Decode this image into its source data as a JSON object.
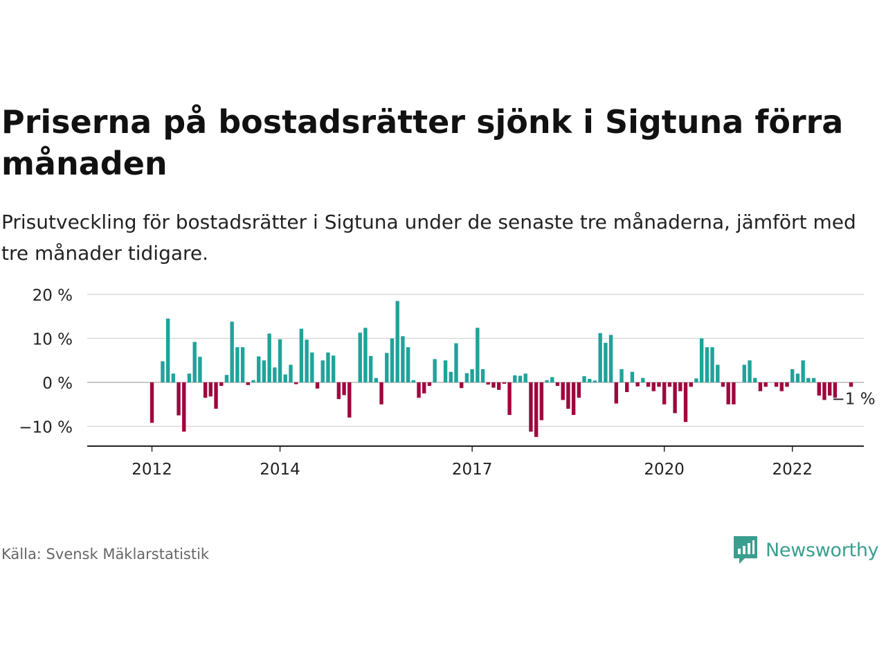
{
  "title": "Priserna på bostadsrätter sjönk i Sigtuna förra månaden",
  "subtitle": "Prisutveckling för bostadsrätter i Sigtuna under de senaste tre månaderna, jämfört med tre månader tidigare.",
  "source": "Källa: Svensk Mäklarstatistik",
  "brand": {
    "name": "Newsworthy",
    "icon": "newsworthy-logo-icon"
  },
  "colors": {
    "positive": "#1fa39a",
    "negative": "#a0063e",
    "grid": "#d9d9d9",
    "axis": "#222222",
    "text": "#222222"
  },
  "chart_data": {
    "type": "bar",
    "xlabel": "",
    "ylabel": "",
    "ylim": [
      -14,
      20
    ],
    "yticks": [
      {
        "value": 20,
        "label": "20 %"
      },
      {
        "value": 10,
        "label": "10 %"
      },
      {
        "value": 0,
        "label": "0 %"
      },
      {
        "value": -10,
        "label": "−10 %"
      }
    ],
    "x_start": "2011-01",
    "x_end": "2023-08",
    "xticks": [
      {
        "date": "2012-01",
        "label": "2012"
      },
      {
        "date": "2014-01",
        "label": "2014"
      },
      {
        "date": "2017-01",
        "label": "2017"
      },
      {
        "date": "2020-01",
        "label": "2020"
      },
      {
        "date": "2022-01",
        "label": "2022"
      }
    ],
    "grid": true,
    "end_label": "−1 %",
    "series": [
      {
        "values": [
          [
            "2012-01",
            -9.2
          ],
          [
            "2012-02",
            0
          ],
          [
            "2012-03",
            4.8
          ],
          [
            "2012-04",
            14.5
          ],
          [
            "2012-05",
            2.0
          ],
          [
            "2012-06",
            -7.5
          ],
          [
            "2012-07",
            -11.2
          ],
          [
            "2012-08",
            2.0
          ],
          [
            "2012-09",
            9.2
          ],
          [
            "2012-10",
            5.8
          ],
          [
            "2012-11",
            -3.5
          ],
          [
            "2012-12",
            -3.2
          ],
          [
            "2013-01",
            -6.0
          ],
          [
            "2013-02",
            -0.8
          ],
          [
            "2013-03",
            1.7
          ],
          [
            "2013-04",
            13.8
          ],
          [
            "2013-05",
            8.0
          ],
          [
            "2013-06",
            8.0
          ],
          [
            "2013-07",
            -0.6
          ],
          [
            "2013-08",
            0.5
          ],
          [
            "2013-09",
            5.9
          ],
          [
            "2013-10",
            5.0
          ],
          [
            "2013-11",
            11.1
          ],
          [
            "2013-12",
            3.4
          ],
          [
            "2014-01",
            9.8
          ],
          [
            "2014-02",
            1.8
          ],
          [
            "2014-03",
            4.0
          ],
          [
            "2014-04",
            -0.4
          ],
          [
            "2014-05",
            12.2
          ],
          [
            "2014-06",
            9.7
          ],
          [
            "2014-07",
            6.8
          ],
          [
            "2014-08",
            -1.4
          ],
          [
            "2014-09",
            5.0
          ],
          [
            "2014-10",
            6.8
          ],
          [
            "2014-11",
            6.1
          ],
          [
            "2014-12",
            -3.8
          ],
          [
            "2015-01",
            -2.9
          ],
          [
            "2015-02",
            -8.0
          ],
          [
            "2015-03",
            0
          ],
          [
            "2015-04",
            11.3
          ],
          [
            "2015-05",
            12.4
          ],
          [
            "2015-06",
            6.0
          ],
          [
            "2015-07",
            1.0
          ],
          [
            "2015-08",
            -5.0
          ],
          [
            "2015-09",
            6.7
          ],
          [
            "2015-10",
            10.0
          ],
          [
            "2015-11",
            18.5
          ],
          [
            "2015-12",
            10.5
          ],
          [
            "2016-01",
            8.0
          ],
          [
            "2016-02",
            0.5
          ],
          [
            "2016-03",
            -3.5
          ],
          [
            "2016-04",
            -2.5
          ],
          [
            "2016-05",
            -0.8
          ],
          [
            "2016-06",
            5.3
          ],
          [
            "2016-07",
            0
          ],
          [
            "2016-08",
            5.0
          ],
          [
            "2016-09",
            2.4
          ],
          [
            "2016-10",
            8.9
          ],
          [
            "2016-11",
            -1.3
          ],
          [
            "2016-12",
            2.1
          ],
          [
            "2017-01",
            3.0
          ],
          [
            "2017-02",
            12.4
          ],
          [
            "2017-03",
            3.0
          ],
          [
            "2017-04",
            -0.5
          ],
          [
            "2017-05",
            -1.2
          ],
          [
            "2017-06",
            -1.7
          ],
          [
            "2017-07",
            -0.3
          ],
          [
            "2017-08",
            -7.4
          ],
          [
            "2017-09",
            1.6
          ],
          [
            "2017-10",
            1.5
          ],
          [
            "2017-11",
            2.0
          ],
          [
            "2017-12",
            -11.2
          ],
          [
            "2018-01",
            -12.4
          ],
          [
            "2018-02",
            -8.6
          ],
          [
            "2018-03",
            0.5
          ],
          [
            "2018-04",
            1.2
          ],
          [
            "2018-05",
            -0.8
          ],
          [
            "2018-06",
            -4.0
          ],
          [
            "2018-07",
            -6.0
          ],
          [
            "2018-08",
            -7.4
          ],
          [
            "2018-09",
            -3.5
          ],
          [
            "2018-10",
            1.4
          ],
          [
            "2018-11",
            0.8
          ],
          [
            "2018-12",
            0.4
          ],
          [
            "2019-01",
            11.2
          ],
          [
            "2019-02",
            9.0
          ],
          [
            "2019-03",
            10.8
          ],
          [
            "2019-04",
            -4.8
          ],
          [
            "2019-05",
            3.0
          ],
          [
            "2019-06",
            -2.2
          ],
          [
            "2019-07",
            2.4
          ],
          [
            "2019-08",
            -0.9
          ],
          [
            "2019-09",
            1.0
          ],
          [
            "2019-10",
            -1.0
          ],
          [
            "2019-11",
            -2.0
          ],
          [
            "2019-12",
            -1.0
          ],
          [
            "2020-01",
            -5.0
          ],
          [
            "2020-02",
            -1.0
          ],
          [
            "2020-03",
            -7.0
          ],
          [
            "2020-04",
            -2.0
          ],
          [
            "2020-05",
            -9.0
          ],
          [
            "2020-06",
            -1.0
          ],
          [
            "2020-07",
            0.9
          ],
          [
            "2020-08",
            10.0
          ],
          [
            "2020-09",
            8.0
          ],
          [
            "2020-10",
            8.0
          ],
          [
            "2020-11",
            4.0
          ],
          [
            "2020-12",
            -1.0
          ],
          [
            "2021-01",
            -5.0
          ],
          [
            "2021-02",
            -5.0
          ],
          [
            "2021-03",
            0
          ],
          [
            "2021-04",
            4.0
          ],
          [
            "2021-05",
            5.0
          ],
          [
            "2021-06",
            1.0
          ],
          [
            "2021-07",
            -2.0
          ],
          [
            "2021-08",
            -1.0
          ],
          [
            "2021-09",
            0
          ],
          [
            "2021-10",
            -1.0
          ],
          [
            "2021-11",
            -2.0
          ],
          [
            "2021-12",
            -1.0
          ],
          [
            "2022-01",
            3.0
          ],
          [
            "2022-02",
            2.0
          ],
          [
            "2022-03",
            5.0
          ],
          [
            "2022-04",
            1.0
          ],
          [
            "2022-05",
            1.0
          ],
          [
            "2022-06",
            -3.0
          ],
          [
            "2022-07",
            -4.0
          ],
          [
            "2022-08",
            -3.0
          ],
          [
            "2022-09",
            -3.5
          ],
          [
            "2022-10",
            0
          ],
          [
            "2022-11",
            0
          ],
          [
            "2022-12",
            -1.0
          ]
        ]
      }
    ]
  }
}
